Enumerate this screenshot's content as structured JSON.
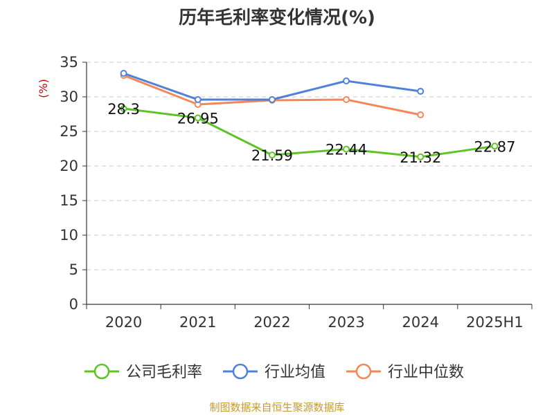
{
  "chart_data": {
    "type": "line",
    "title": "历年毛利率变化情况(%)",
    "ylabel": "(%)",
    "categories": [
      "2020",
      "2021",
      "2022",
      "2023",
      "2024",
      "2025H1"
    ],
    "yticks": [
      0,
      5,
      10,
      15,
      20,
      25,
      30,
      35
    ],
    "ylim": [
      0,
      35
    ],
    "grid": true,
    "legend_position": "bottom",
    "series": [
      {
        "name": "公司毛利率",
        "color": "#5ec424",
        "values": [
          28.3,
          26.95,
          21.59,
          22.44,
          21.32,
          22.87
        ],
        "labels": [
          "28.3",
          "26.95",
          "21.59",
          "22.44",
          "21.32",
          "22.87"
        ]
      },
      {
        "name": "行业均值",
        "color": "#4f81d9",
        "values": [
          33.4,
          29.6,
          29.6,
          32.3,
          30.8,
          null
        ]
      },
      {
        "name": "行业中位数",
        "color": "#f4875a",
        "values": [
          33.1,
          28.9,
          29.5,
          29.6,
          27.4,
          null
        ]
      }
    ]
  },
  "source": "制图数据来自恒生聚源数据库"
}
